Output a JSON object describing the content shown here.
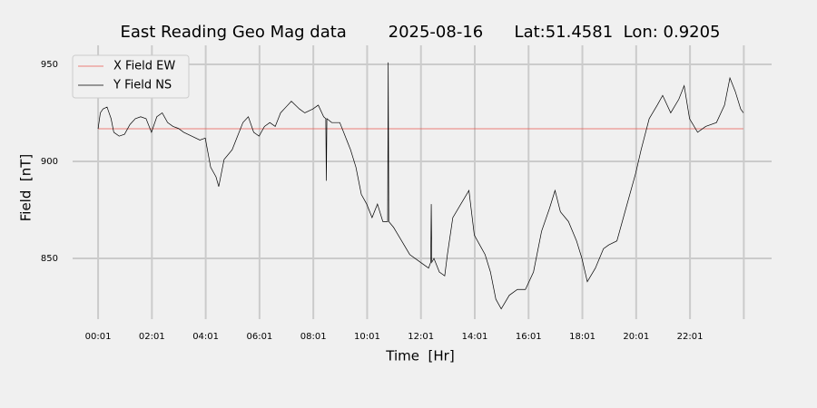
{
  "chart_data": {
    "type": "line",
    "title": "East Reading Geo Mag data        2025-08-16      Lat:51.4581  Lon: 0.9205",
    "x_label": "Time  [Hr]",
    "y_label": "Field  [nT]",
    "xlim": [
      -0.93,
      25.05
    ],
    "ylim": [
      818.7,
      959.8
    ],
    "xticks": [
      {
        "value": 0.0167,
        "label": "00:01"
      },
      {
        "value": 2.0167,
        "label": "02:01"
      },
      {
        "value": 4.0167,
        "label": "04:01"
      },
      {
        "value": 6.0167,
        "label": "06:01"
      },
      {
        "value": 8.0167,
        "label": "08:01"
      },
      {
        "value": 10.0167,
        "label": "10:01"
      },
      {
        "value": 12.0167,
        "label": "12:01"
      },
      {
        "value": 14.0167,
        "label": "14:01"
      },
      {
        "value": 16.0167,
        "label": "16:01"
      },
      {
        "value": 18.0167,
        "label": "18:01"
      },
      {
        "value": 20.0167,
        "label": "20:01"
      },
      {
        "value": 22.0167,
        "label": "22:01"
      },
      {
        "value": 24.0167,
        "label": null
      }
    ],
    "yticks": [
      850,
      900,
      950
    ],
    "grid": true,
    "legend": "upper left",
    "series": [
      {
        "name": "X Field EW",
        "color": "#e8584f",
        "x": [
          0.0167,
          24.0
        ],
        "values": [
          916.8,
          916.8
        ]
      },
      {
        "name": "Y Field NS",
        "color": "#000000",
        "x": [
          0.0167,
          0.1,
          0.2,
          0.35,
          0.5,
          0.6,
          0.8,
          1.0,
          1.2,
          1.4,
          1.6,
          1.8,
          2.0,
          2.2,
          2.4,
          2.6,
          2.8,
          3.0,
          3.2,
          3.5,
          3.8,
          4.0,
          4.2,
          4.4,
          4.5,
          4.7,
          5.0,
          5.2,
          5.4,
          5.6,
          5.8,
          6.0,
          6.2,
          6.4,
          6.6,
          6.8,
          7.0,
          7.2,
          7.5,
          7.7,
          8.0,
          8.2,
          8.4,
          8.48,
          8.5,
          8.52,
          8.7,
          9.0,
          9.2,
          9.4,
          9.6,
          9.8,
          10.0,
          10.2,
          10.4,
          10.6,
          10.78,
          10.8,
          10.82,
          11.0,
          11.3,
          11.6,
          12.0,
          12.3,
          12.38,
          12.4,
          12.42,
          12.5,
          12.7,
          12.9,
          13.0,
          13.2,
          13.5,
          13.8,
          14.0,
          14.2,
          14.4,
          14.6,
          14.8,
          15.0,
          15.3,
          15.6,
          15.9,
          16.2,
          16.5,
          16.8,
          17.0,
          17.2,
          17.5,
          17.8,
          18.0,
          18.2,
          18.5,
          18.8,
          19.0,
          19.3,
          19.6,
          20.0,
          20.2,
          20.5,
          20.8,
          21.0,
          21.3,
          21.6,
          21.8,
          22.0,
          22.3,
          22.6,
          23.0,
          23.3,
          23.5,
          23.7,
          23.9,
          24.0
        ],
        "values": [
          916.8,
          925,
          927,
          928,
          922,
          915,
          913,
          914,
          919,
          922,
          923,
          922,
          915,
          923,
          925,
          920,
          918,
          917,
          915,
          913,
          911,
          912,
          897,
          892,
          887,
          901,
          906,
          913,
          920,
          923,
          915,
          913,
          918,
          920,
          918,
          925,
          928,
          931,
          927,
          925,
          927,
          929,
          923,
          922,
          890,
          922,
          920,
          920,
          913,
          906,
          897,
          883,
          878,
          871,
          878,
          869,
          869,
          951,
          869,
          866,
          859,
          852,
          848,
          845,
          848,
          878,
          848,
          850,
          843,
          841,
          852,
          871,
          878,
          885,
          862,
          857,
          852,
          843,
          829,
          824,
          831,
          834,
          834,
          843,
          864,
          876,
          885,
          874,
          869,
          859,
          850,
          838,
          845,
          855,
          857,
          859,
          874,
          894,
          906,
          922,
          929,
          934,
          925,
          932,
          939,
          922,
          915,
          918,
          920,
          929,
          943,
          936,
          927,
          925
        ]
      }
    ]
  }
}
